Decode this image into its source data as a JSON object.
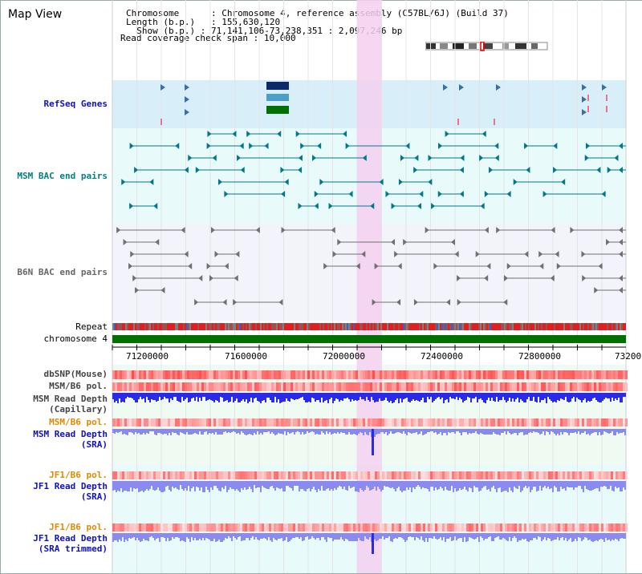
{
  "window": {
    "title": "Map View"
  },
  "info": {
    "chromosome_label": "Chromosome",
    "chromosome_value": "Chromosome 4, reference assembly (C57BL/6J) (Build 37)",
    "length_label": "Length (b.p.)",
    "length_value": "155,630,120",
    "show_label": "Show (b.p.)",
    "show_value": "71,141,106-73,238,351 : 2,097,246 bp",
    "coverage_label": "Read coverage check span",
    "coverage_value": "10,000"
  },
  "tracks": {
    "refseq": "RefSeq Genes",
    "msm_bac": "MSM BAC end pairs",
    "b6n_bac": "B6N BAC end pairs",
    "repeat": "Repeat",
    "chromosome": "chromosome 4",
    "dbsnp": "dbSNP(Mouse)",
    "msm_b6_pol_1": "MSM/B6 pol.",
    "msm_read_depth_cap_1": "MSM Read Depth",
    "msm_read_depth_cap_2": "(Capillary)",
    "msm_b6_pol_2": "MSM/B6 pol.",
    "msm_read_depth_sra_1": "MSM Read Depth",
    "msm_read_depth_sra_2": "(SRA)",
    "jf1_b6_pol_1": "JF1/B6 pol.",
    "jf1_read_depth_sra_1": "JF1 Read Depth",
    "jf1_read_depth_sra_2": "(SRA)",
    "jf1_b6_pol_2": "JF1/B6 pol.",
    "jf1_read_depth_trim_1": "JF1 Read Depth",
    "jf1_read_depth_trim_2": "(SRA trimmed)"
  },
  "axis": {
    "ticks": [
      "71200000",
      "71600000",
      "72000000",
      "72400000",
      "72800000",
      "73200"
    ]
  },
  "colors": {
    "refseq_bg": "#d8effa",
    "msm_bg": "#e8fafa",
    "b6n_bg": "#f3f3fb",
    "highlight": "#f5d0f0",
    "chromosome_bar": "#007000",
    "read_depth": "#3333ee",
    "read_depth_light": "#8080f0"
  }
}
